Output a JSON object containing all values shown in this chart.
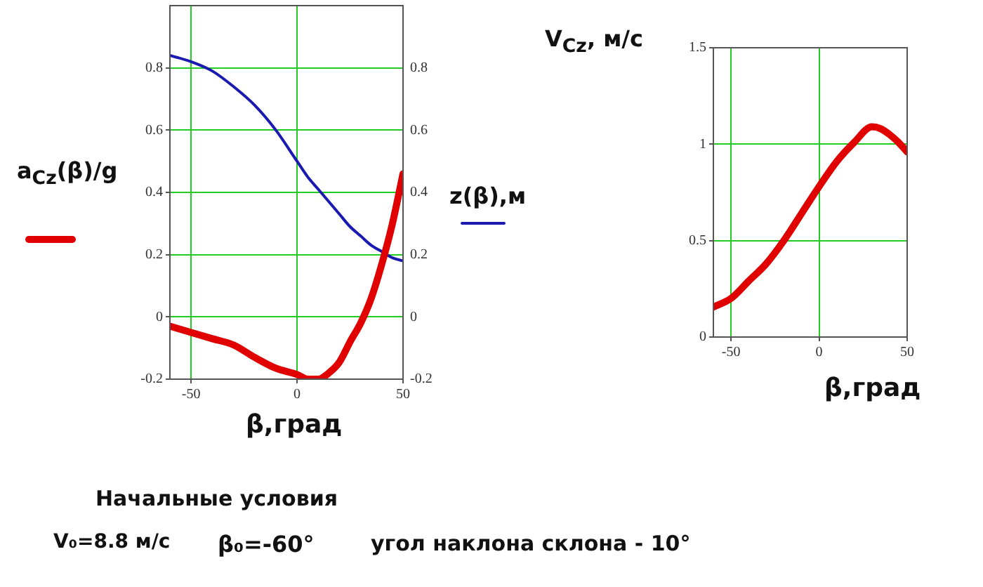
{
  "chart_data": [
    {
      "type": "line",
      "x": [
        -60,
        -50,
        -40,
        -30,
        -20,
        -10,
        0,
        5,
        10,
        15,
        20,
        25,
        30,
        35,
        40,
        45,
        50
      ],
      "series": [
        {
          "color": "#e00000",
          "values": [
            -0.03,
            -0.05,
            -0.07,
            -0.09,
            -0.13,
            -0.165,
            -0.185,
            -0.2,
            -0.2,
            -0.18,
            -0.145,
            -0.08,
            -0.02,
            0.06,
            0.17,
            0.3,
            0.46
          ]
        },
        {
          "color": "#1a1ab0",
          "axis": "y2",
          "values": [
            0.84,
            0.82,
            0.79,
            0.74,
            0.68,
            0.6,
            0.5,
            0.45,
            0.41,
            0.37,
            0.33,
            0.29,
            0.26,
            0.23,
            0.21,
            0.19,
            0.18
          ]
        }
      ],
      "xlabel": "β,град",
      "ylabel": "a$_{Cz}$(β)/g",
      "y2label": "z(β),м",
      "xlim": [
        -60,
        50
      ],
      "xticks": [
        -50,
        0,
        50
      ],
      "ylim": [
        -0.2,
        1
      ],
      "yticks": [
        -0.2,
        0,
        0.2,
        0.4,
        0.6,
        0.8
      ],
      "y2lim": [
        -0.2,
        1
      ],
      "y2ticks": [
        -0.2,
        0,
        0.2,
        0.4,
        0.6,
        0.8
      ],
      "grid": true,
      "legend": false,
      "marker": "none",
      "line_style": "solid",
      "annotations": [
        "Начальные условия",
        "V₀=8.8 м/с",
        "β₀=-60°",
        "угол наклона склона - 10°"
      ]
    },
    {
      "type": "line",
      "x": [
        -60,
        -50,
        -40,
        -30,
        -20,
        -10,
        0,
        10,
        20,
        30,
        35,
        40,
        45,
        50
      ],
      "series": [
        {
          "color": "#e00000",
          "values": [
            0.156,
            0.2,
            0.29,
            0.38,
            0.5,
            0.64,
            0.78,
            0.91,
            1.01,
            1.09,
            1.08,
            1.05,
            1.01,
            0.96
          ]
        }
      ],
      "xlabel": "β,град",
      "ylabel": "V$_{Cz}$, м/с",
      "xlim": [
        -60,
        50
      ],
      "xticks": [
        -50,
        0,
        50
      ],
      "ylim": [
        0,
        1.5
      ],
      "yticks": [
        0,
        0.5,
        1,
        1.5
      ],
      "grid": true,
      "legend": false,
      "marker": "none",
      "line_style": "solid"
    }
  ]
}
